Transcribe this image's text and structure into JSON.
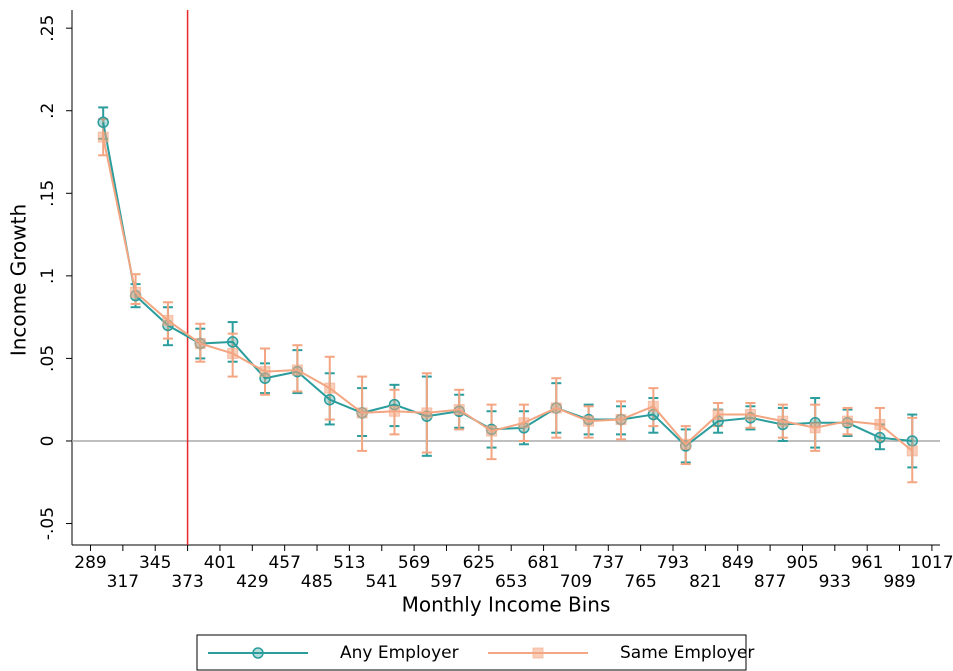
{
  "chart_data": {
    "type": "line",
    "x_label": "Monthly Income Bins",
    "y_label": "Income Growth",
    "x": [
      300,
      328,
      356,
      384,
      412,
      440,
      468,
      496,
      524,
      552,
      580,
      608,
      636,
      664,
      692,
      720,
      748,
      776,
      804,
      832,
      860,
      888,
      916,
      944,
      972,
      1000
    ],
    "series": [
      {
        "name": "Any Employer",
        "color": "#2a9d9c",
        "marker": "circle",
        "values": [
          0.193,
          0.088,
          0.07,
          0.059,
          0.06,
          0.038,
          0.042,
          0.025,
          0.017,
          0.022,
          0.015,
          0.018,
          0.007,
          0.008,
          0.02,
          0.013,
          0.013,
          0.016,
          -0.003,
          0.012,
          0.014,
          0.01,
          0.011,
          0.011,
          0.002,
          0.0
        ],
        "lower": [
          0.183,
          0.081,
          0.058,
          0.05,
          0.048,
          0.029,
          0.029,
          0.01,
          0.003,
          0.009,
          -0.009,
          0.008,
          -0.004,
          -0.002,
          0.005,
          0.004,
          0.004,
          0.005,
          -0.013,
          0.005,
          0.007,
          0.0,
          -0.004,
          0.003,
          -0.005,
          -0.016
        ],
        "upper": [
          0.202,
          0.095,
          0.081,
          0.068,
          0.072,
          0.047,
          0.055,
          0.041,
          0.032,
          0.034,
          0.039,
          0.028,
          0.018,
          0.018,
          0.035,
          0.022,
          0.021,
          0.026,
          0.007,
          0.019,
          0.021,
          0.02,
          0.026,
          0.019,
          0.01,
          0.016
        ]
      },
      {
        "name": "Same Employer",
        "color": "#f4a582",
        "marker": "square",
        "values": [
          0.184,
          0.09,
          0.073,
          0.059,
          0.053,
          0.042,
          0.043,
          0.032,
          0.017,
          0.018,
          0.017,
          0.019,
          0.006,
          0.011,
          0.02,
          0.012,
          0.013,
          0.021,
          -0.002,
          0.016,
          0.016,
          0.012,
          0.008,
          0.012,
          0.01,
          -0.006
        ],
        "lower": [
          0.173,
          0.083,
          0.062,
          0.048,
          0.039,
          0.028,
          0.03,
          0.013,
          -0.006,
          0.004,
          -0.007,
          0.007,
          -0.011,
          0.0,
          0.002,
          0.002,
          0.001,
          0.009,
          -0.014,
          0.009,
          0.008,
          0.002,
          -0.006,
          0.004,
          0.0,
          -0.025
        ],
        "upper": [
          0.195,
          0.101,
          0.084,
          0.071,
          0.065,
          0.056,
          0.058,
          0.051,
          0.039,
          0.031,
          0.041,
          0.031,
          0.022,
          0.022,
          0.038,
          0.021,
          0.024,
          0.032,
          0.009,
          0.023,
          0.023,
          0.022,
          0.022,
          0.02,
          0.02,
          0.014
        ]
      }
    ],
    "xlim": [
      273,
      1024
    ],
    "xticks": [
      289,
      317,
      345,
      373,
      401,
      429,
      457,
      485,
      513,
      541,
      569,
      597,
      625,
      653,
      681,
      709,
      737,
      765,
      793,
      821,
      849,
      877,
      905,
      933,
      961,
      989,
      1017
    ],
    "ylim": [
      -0.063,
      0.261
    ],
    "yticks": [
      {
        "value": -0.05,
        "label": "-.05"
      },
      0,
      {
        "value": 0.05,
        "label": ".05"
      },
      {
        "value": 0.1,
        "label": ".1"
      },
      {
        "value": 0.15,
        "label": ".15"
      },
      {
        "value": 0.2,
        "label": ".2"
      },
      {
        "value": 0.25,
        "label": ".25"
      }
    ],
    "reference_line_x": 373,
    "reference_line_x_color": "#e8262b",
    "reference_line_y": 0,
    "reference_line_y_color": "#aaaaaa",
    "legend_position": "bottom"
  }
}
